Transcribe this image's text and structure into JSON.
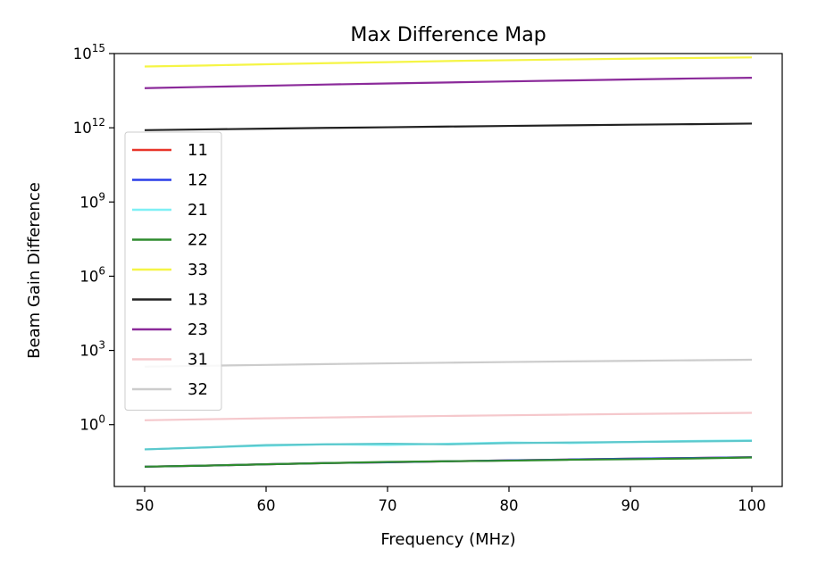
{
  "chart_data": {
    "type": "line",
    "title": "Max Difference Map",
    "xlabel": "Frequency (MHz)",
    "ylabel": "Beam Gain Difference",
    "xlim": [
      47.5,
      102.5
    ],
    "ylim_log10": [
      -2.5,
      15
    ],
    "yscale": "log",
    "grid": false,
    "legend_position": "center-left",
    "x_ticks": [
      50,
      60,
      70,
      80,
      90,
      100
    ],
    "y_ticks": [
      {
        "exp": 0,
        "base": "10",
        "sup": "0"
      },
      {
        "exp": 3,
        "base": "10",
        "sup": "3"
      },
      {
        "exp": 6,
        "base": "10",
        "sup": "6"
      },
      {
        "exp": 9,
        "base": "10",
        "sup": "9"
      },
      {
        "exp": 12,
        "base": "10",
        "sup": "12"
      },
      {
        "exp": 15,
        "base": "10",
        "sup": "15"
      }
    ],
    "x": [
      50,
      55,
      60,
      65,
      70,
      75,
      80,
      85,
      90,
      95,
      100
    ],
    "series": [
      {
        "name": "11",
        "color": "#e8352a",
        "values": [
          0.02,
          0.022,
          0.025,
          0.028,
          0.03,
          0.033,
          0.036,
          0.039,
          0.042,
          0.045,
          0.048
        ]
      },
      {
        "name": "12",
        "color": "#2a3ee8",
        "values": [
          0.02,
          0.022,
          0.025,
          0.028,
          0.03,
          0.033,
          0.036,
          0.039,
          0.042,
          0.045,
          0.048
        ]
      },
      {
        "name": "21",
        "color": "#7ff0f5",
        "values": [
          0.1,
          0.12,
          0.14,
          0.16,
          0.15,
          0.17,
          0.19,
          0.18,
          0.2,
          0.22,
          0.23
        ]
      },
      {
        "name": "22",
        "color": "#2e8b2e",
        "values": [
          0.02,
          0.022,
          0.025,
          0.028,
          0.031,
          0.033,
          0.035,
          0.038,
          0.04,
          0.043,
          0.047
        ]
      },
      {
        "name": "33",
        "color": "#f5f545",
        "values": [
          300000000000000,
          330000000000000,
          370000000000000,
          410000000000000,
          450000000000000,
          500000000000000,
          540000000000000,
          580000000000000,
          620000000000000,
          660000000000000,
          700000000000000
        ]
      },
      {
        "name": "13",
        "color": "#222222",
        "values": [
          800000000000,
          860000000000,
          920000000000,
          990000000000,
          1050000000000,
          1120000000000,
          1190000000000,
          1260000000000,
          1330000000000,
          1400000000000,
          1480000000000
        ]
      },
      {
        "name": "23",
        "color": "#8b2a9a",
        "values": [
          40000000000000,
          45000000000000,
          50000000000000,
          56000000000000,
          62000000000000,
          68000000000000,
          75000000000000,
          82000000000000,
          90000000000000,
          98000000000000,
          105000000000000
        ]
      },
      {
        "name": "31",
        "color": "#f5c8cc",
        "values": [
          1.5,
          1.65,
          1.8,
          1.95,
          2.1,
          2.25,
          2.4,
          2.55,
          2.7,
          2.85,
          3.0
        ]
      },
      {
        "name": "32",
        "color": "#cccccc",
        "values": [
          220,
          240,
          260,
          280,
          300,
          320,
          340,
          360,
          380,
          400,
          420
        ]
      }
    ],
    "overlay_series": [
      {
        "name": "21",
        "color": "#5cc8cc",
        "values": [
          0.1,
          0.12,
          0.15,
          0.16,
          0.17,
          0.16,
          0.18,
          0.19,
          0.2,
          0.21,
          0.22
        ]
      }
    ]
  }
}
